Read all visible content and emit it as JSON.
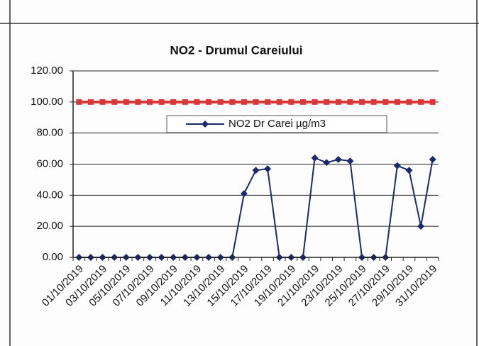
{
  "chart_data": {
    "type": "line",
    "title": "NO2 - Drumul Careiului",
    "categories": [
      "01/10/2019",
      null,
      "03/10/2019",
      null,
      "05/10/2019",
      null,
      "07/10/2019",
      null,
      "09/10/2019",
      null,
      "11/10/2019",
      null,
      "13/10/2019",
      null,
      "15/10/2019",
      null,
      "17/10/2019",
      null,
      "19/10/2019",
      null,
      "21/10/2019",
      null,
      "23/10/2019",
      null,
      "25/10/2019",
      null,
      "27/10/2019",
      null,
      "29/10/2019",
      null,
      "31/10/2019"
    ],
    "series": [
      {
        "color": "#d9383a",
        "values": [
          100,
          100,
          100,
          100,
          100,
          100,
          100,
          100,
          100,
          100,
          100,
          100,
          100,
          100,
          100,
          100,
          100,
          100,
          100,
          100,
          100,
          100,
          100,
          100,
          100,
          100,
          100,
          100,
          100,
          100,
          100
        ]
      },
      {
        "name": "NO2 Dr Carei  µg/m3",
        "color": "#1a2a6c",
        "values": [
          0,
          0,
          0,
          0,
          0,
          0,
          0,
          0,
          0,
          0,
          0,
          0,
          0,
          0,
          41,
          56,
          57,
          0,
          0,
          0,
          64,
          61,
          63,
          62,
          0,
          0,
          0,
          59,
          56,
          20,
          63
        ]
      }
    ],
    "ylim": [
      0,
      120
    ],
    "yticks": [
      {
        "value": 0,
        "label": "0.00"
      },
      {
        "value": 20,
        "label": "20.00"
      },
      {
        "value": 40,
        "label": "40.00"
      },
      {
        "value": 60,
        "label": "60.00"
      },
      {
        "value": 80,
        "label": "80.00"
      },
      {
        "value": 100,
        "label": "100.00"
      },
      {
        "value": 120,
        "label": "120.00"
      }
    ],
    "grid": true
  }
}
